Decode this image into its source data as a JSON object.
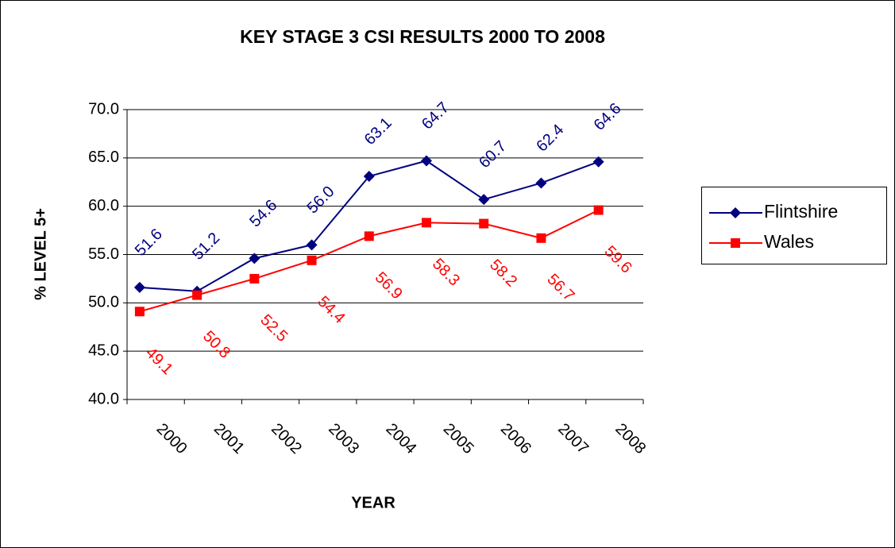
{
  "chart_data": {
    "type": "line",
    "title": "KEY STAGE 3 CSI RESULTS 2000 TO 2008",
    "x_label": "YEAR",
    "y_label": "% LEVEL 5+",
    "categories": [
      "2000",
      "2001",
      "2002",
      "2003",
      "2004",
      "2005",
      "2006",
      "2007",
      "2008"
    ],
    "series": [
      {
        "name": "Flintshire",
        "color": "#000080",
        "marker": "diamond",
        "values": [
          51.6,
          51.2,
          54.6,
          56.0,
          63.1,
          64.7,
          60.7,
          62.4,
          64.6
        ],
        "value_labels": [
          "51.6",
          "51.2",
          "54.6",
          "56.0",
          "63.1",
          "64.7",
          "60.7",
          "62.4",
          "64.6"
        ]
      },
      {
        "name": "Wales",
        "color": "#ff0000",
        "marker": "square",
        "values": [
          49.1,
          50.8,
          52.5,
          54.4,
          56.9,
          58.3,
          58.2,
          56.7,
          59.6
        ],
        "value_labels": [
          "49.1",
          "50.8",
          "52.5",
          "54.4",
          "56.9",
          "58.3",
          "58.2",
          "56.7",
          "59.6"
        ]
      }
    ],
    "ylim": [
      40,
      70
    ],
    "yticks": [
      {
        "value": 40,
        "label": "40.0"
      },
      {
        "value": 45,
        "label": "45.0"
      },
      {
        "value": 50,
        "label": "50.0"
      },
      {
        "value": 55,
        "label": "55.0"
      },
      {
        "value": 60,
        "label": "60.0"
      },
      {
        "value": 65,
        "label": "65.0"
      },
      {
        "value": 70,
        "label": "70.0"
      }
    ],
    "grid": true,
    "legend": "right"
  }
}
